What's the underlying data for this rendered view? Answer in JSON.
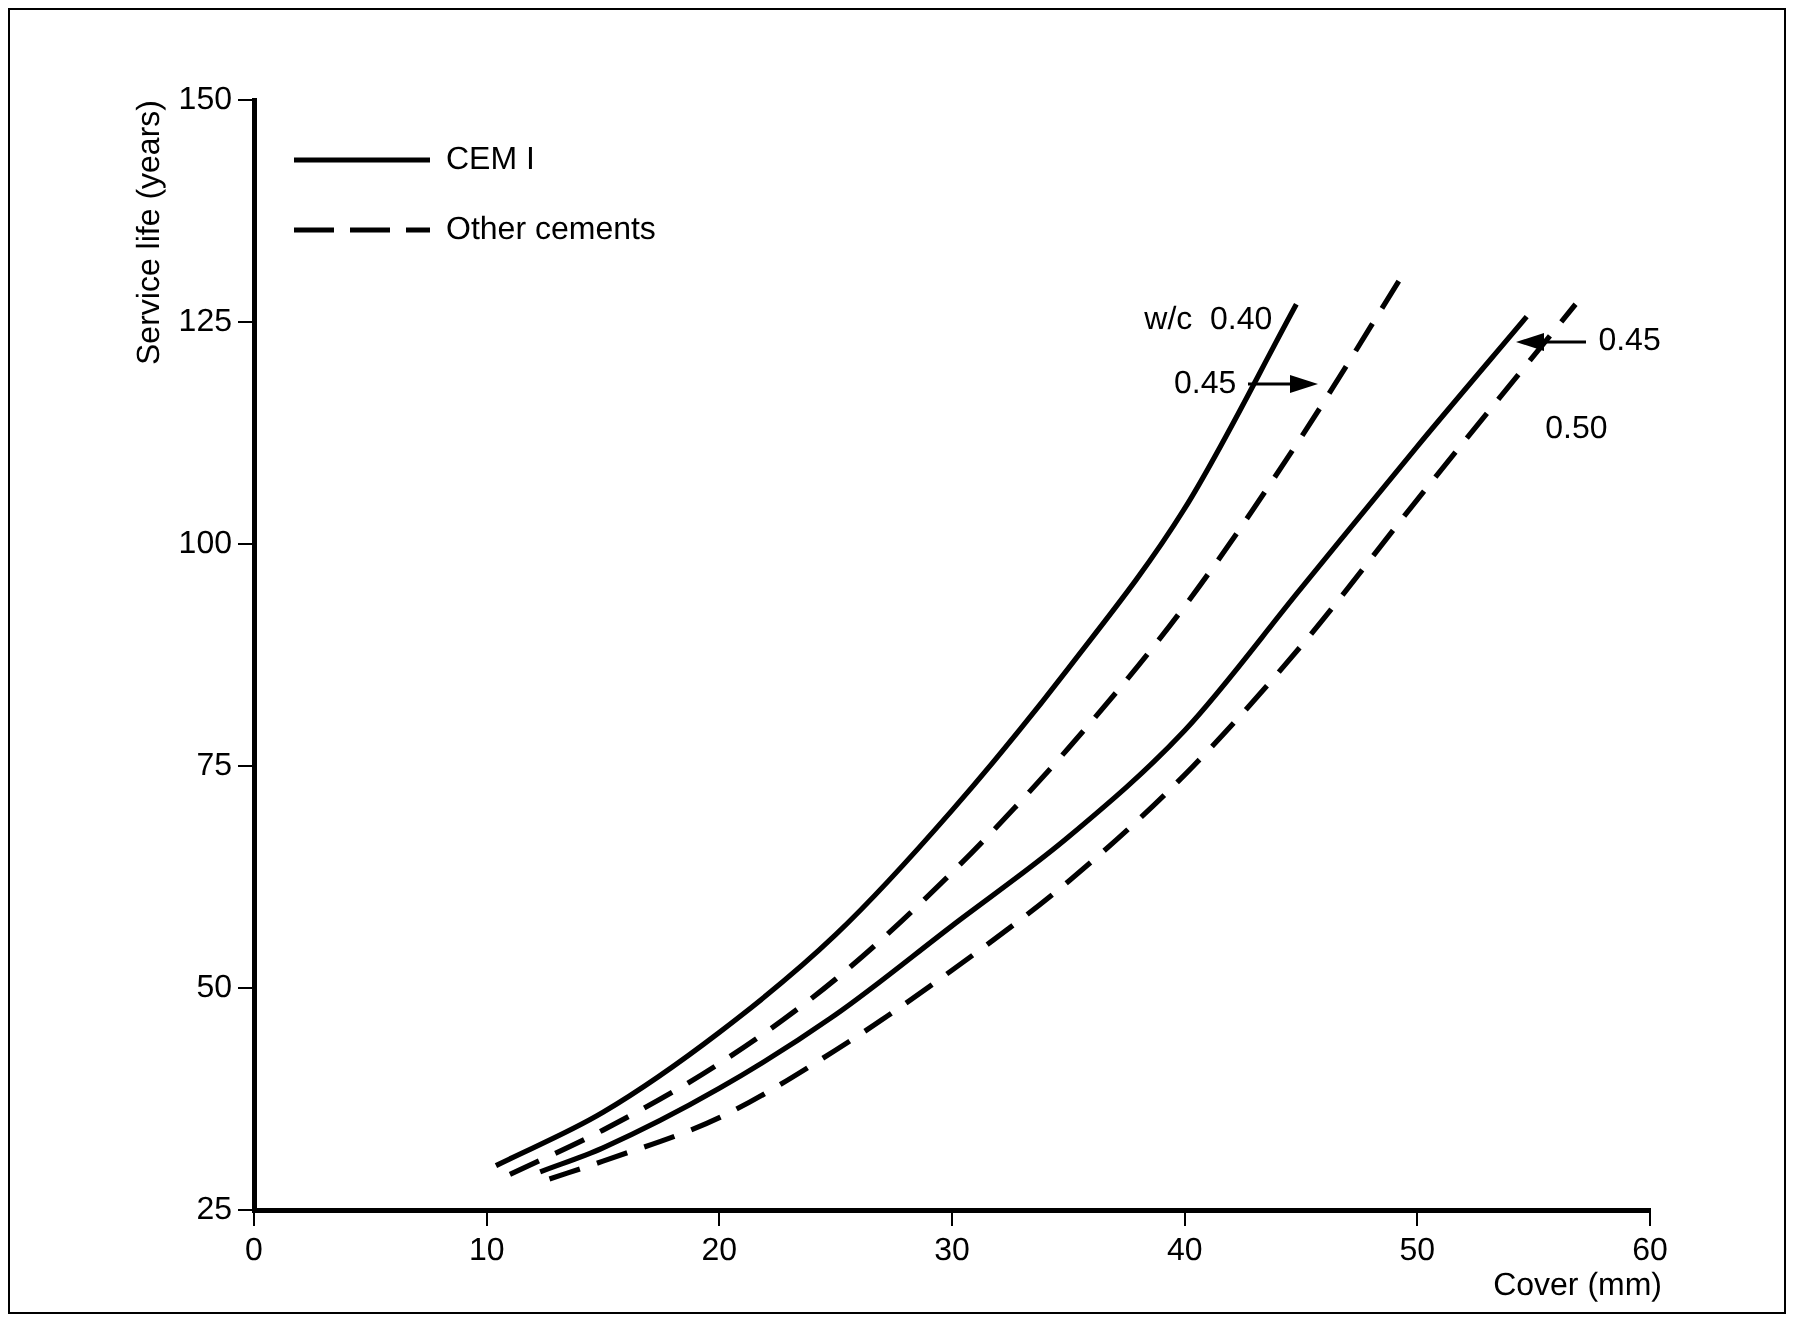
{
  "chart_data": {
    "type": "line",
    "xlabel": "Cover (mm)",
    "ylabel": "Service life (years)",
    "xlim": [
      0,
      60
    ],
    "xticks": [
      0,
      10,
      20,
      30,
      40,
      50,
      60
    ],
    "ylim": [
      25,
      150
    ],
    "yticks": [
      25,
      50,
      75,
      100,
      125,
      150
    ],
    "grid": false,
    "legend": "top left",
    "marker": "none",
    "series": [
      {
        "name": "CEM I",
        "color": "#000000",
        "line_style": "solid",
        "x": [
          10.4,
          15,
          20,
          25,
          30,
          35,
          40,
          44.8
        ],
        "values": [
          30,
          36,
          45,
          56,
          70,
          86,
          104,
          127
        ]
      },
      {
        "name": "Other cements",
        "color": "#000000",
        "line_style": "dashed",
        "x": [
          11,
          15,
          20,
          25,
          30,
          35,
          40,
          45,
          49.3
        ],
        "values": [
          29,
          34,
          41.5,
          51,
          63,
          77,
          93,
          112,
          130
        ]
      },
      {
        "color": "#000000",
        "line_style": "solid",
        "x": [
          12.3,
          15,
          20,
          25,
          30,
          35,
          40,
          45,
          50,
          54.7
        ],
        "values": [
          29.3,
          32,
          38.7,
          47,
          57,
          67,
          79,
          95,
          111,
          125.6
        ]
      },
      {
        "color": "#000000",
        "line_style": "dashed",
        "x": [
          12.7,
          15,
          20,
          25,
          30,
          35,
          40,
          45,
          50,
          56.8
        ],
        "values": [
          28.5,
          30.5,
          35.4,
          43,
          52,
          62,
          74,
          88.5,
          105,
          127
        ]
      }
    ],
    "annotations": [
      {
        "text": "w/c  0.40",
        "x": 44.8,
        "y": 127
      },
      {
        "text": "0.45",
        "x": 46,
        "y": 118
      },
      {
        "text": "0.45",
        "x": 54,
        "y": 122.8
      },
      {
        "text": "0.50",
        "x": 55.5,
        "y": 121
      }
    ]
  }
}
